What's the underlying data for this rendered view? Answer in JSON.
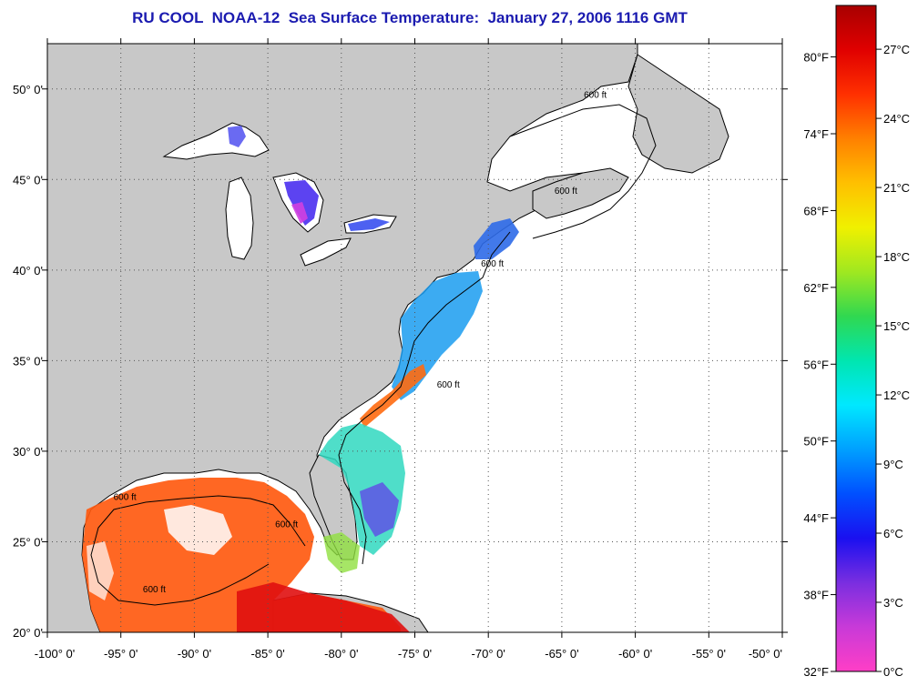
{
  "title": "RU COOL  NOAA-12  Sea Surface Temperature:  January 27, 2006 1116 GMT",
  "map": {
    "lon_range": [
      -100,
      -50
    ],
    "lat_range": [
      20,
      52.5
    ],
    "lat_ticks": [
      {
        "value": 50,
        "label": "50° 0'"
      },
      {
        "value": 45,
        "label": "45° 0'"
      },
      {
        "value": 40,
        "label": "40° 0'"
      },
      {
        "value": 35,
        "label": "35° 0'"
      },
      {
        "value": 30,
        "label": "30° 0'"
      },
      {
        "value": 25,
        "label": "25° 0'"
      },
      {
        "value": 20,
        "label": "20° 0'"
      }
    ],
    "lon_ticks": [
      {
        "value": -100,
        "label": "-100° 0'"
      },
      {
        "value": -95,
        "label": "-95° 0'"
      },
      {
        "value": -90,
        "label": "-90° 0'"
      },
      {
        "value": -85,
        "label": "-85° 0'"
      },
      {
        "value": -80,
        "label": "-80° 0'"
      },
      {
        "value": -75,
        "label": "-75° 0'"
      },
      {
        "value": -70,
        "label": "-70° 0'"
      },
      {
        "value": -65,
        "label": "-65° 0'"
      },
      {
        "value": -60,
        "label": "-60° 0'"
      },
      {
        "value": -55,
        "label": "-55° 0'"
      },
      {
        "value": -50,
        "label": "-50° 0'"
      }
    ],
    "grid": "dotted",
    "land_color": "#c8c8c8",
    "water_no_data_color": "#ffffff",
    "isobath_labels": [
      {
        "text": "600 ft",
        "lon": -73.5,
        "lat": 33.5
      },
      {
        "text": "600 ft",
        "lon": -70.5,
        "lat": 40.2
      },
      {
        "text": "600 ft",
        "lon": -95.5,
        "lat": 27.3
      },
      {
        "text": "600 ft",
        "lon": -93.5,
        "lat": 22.2
      },
      {
        "text": "600 ft",
        "lon": -84.5,
        "lat": 25.8
      },
      {
        "text": "600 ft",
        "lon": -63.5,
        "lat": 49.5
      },
      {
        "text": "600 ft",
        "lon": -65.5,
        "lat": 44.2
      }
    ]
  },
  "colorbar": {
    "temp_min_c": 0,
    "temp_max_c": 28.9,
    "fahrenheit_labels": [
      "80°F",
      "74°F",
      "68°F",
      "62°F",
      "56°F",
      "50°F",
      "44°F",
      "38°F",
      "32°F"
    ],
    "celsius_labels": [
      "27°C",
      "24°C",
      "21°C",
      "18°C",
      "15°C",
      "12°C",
      "9°C",
      "6°C",
      "3°C",
      "0°C"
    ],
    "colors_bottom_to_top": [
      "#ff3ec6",
      "#c83ad8",
      "#7a2ee0",
      "#1a10f0",
      "#0050ff",
      "#00a0ff",
      "#00e8ff",
      "#00e6b0",
      "#30d850",
      "#a0e820",
      "#f0f000",
      "#ffc000",
      "#ff8000",
      "#ff3000",
      "#e00000",
      "#a80000"
    ]
  }
}
